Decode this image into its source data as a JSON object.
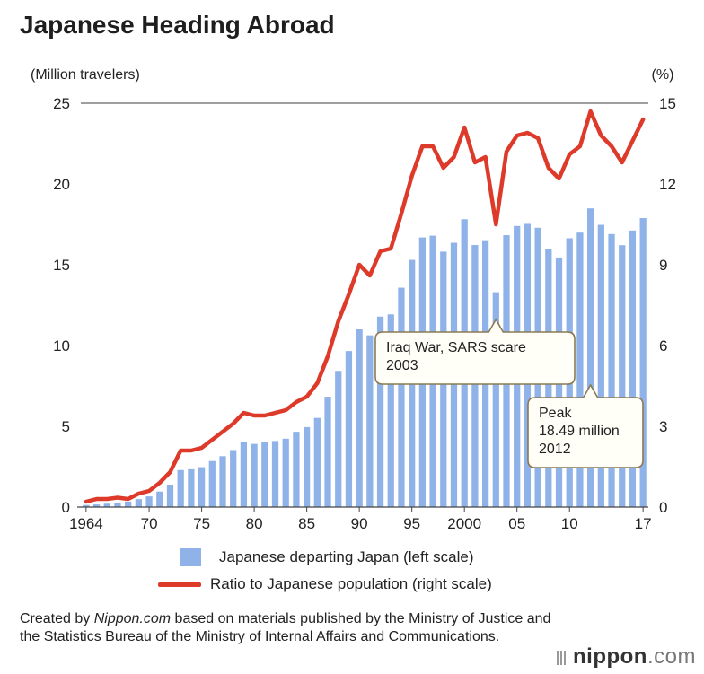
{
  "title": "Japanese Heading Abroad",
  "legend": {
    "bars": "Japanese departing Japan (left scale)",
    "line": "Ratio to Japanese population (right scale)"
  },
  "source": {
    "prefix": "Created by ",
    "site": "Nippon.com",
    "rest": " based on materials published by the Ministry of Justice and the Statistics Bureau of the Ministry of Internal Affairs and Communications."
  },
  "logo": {
    "brand": "nippon",
    "suffix": ".com"
  },
  "annotations": [
    {
      "lines": [
        "Iraq War, SARS scare",
        "2003"
      ],
      "year": 2003
    },
    {
      "lines": [
        "Peak",
        "18.49 million",
        "2012"
      ],
      "year": 2012
    }
  ],
  "chart_data": {
    "type": "bar+line",
    "title": "Japanese Heading Abroad",
    "left_axis": {
      "label": "(Million travelers)",
      "ylim": [
        0,
        25
      ],
      "ticks": [
        0,
        5,
        10,
        15,
        20,
        25
      ]
    },
    "right_axis": {
      "label": "(%)",
      "ylim": [
        0,
        15
      ],
      "ticks": [
        0,
        3,
        6,
        9,
        12,
        15
      ]
    },
    "x_tick_labels": [
      {
        "year": 1964,
        "label": "1964"
      },
      {
        "year": 1970,
        "label": "70"
      },
      {
        "year": 1975,
        "label": "75"
      },
      {
        "year": 1980,
        "label": "80"
      },
      {
        "year": 1985,
        "label": "85"
      },
      {
        "year": 1990,
        "label": "90"
      },
      {
        "year": 1995,
        "label": "95"
      },
      {
        "year": 2000,
        "label": "2000"
      },
      {
        "year": 2005,
        "label": "05"
      },
      {
        "year": 2010,
        "label": "10"
      },
      {
        "year": 2017,
        "label": "17"
      }
    ],
    "years": [
      1964,
      1965,
      1966,
      1967,
      1968,
      1969,
      1970,
      1971,
      1972,
      1973,
      1974,
      1975,
      1976,
      1977,
      1978,
      1979,
      1980,
      1981,
      1982,
      1983,
      1984,
      1985,
      1986,
      1987,
      1988,
      1989,
      1990,
      1991,
      1992,
      1993,
      1994,
      1995,
      1996,
      1997,
      1998,
      1999,
      2000,
      2001,
      2002,
      2003,
      2004,
      2005,
      2006,
      2007,
      2008,
      2009,
      2010,
      2011,
      2012,
      2013,
      2014,
      2015,
      2016,
      2017
    ],
    "series": [
      {
        "name": "Japanese departing Japan (left scale)",
        "axis": "left",
        "kind": "bar",
        "color": "#8fb3e8",
        "values": [
          0.13,
          0.16,
          0.21,
          0.27,
          0.34,
          0.49,
          0.66,
          0.96,
          1.39,
          2.29,
          2.34,
          2.47,
          2.85,
          3.15,
          3.53,
          4.04,
          3.91,
          4.01,
          4.09,
          4.23,
          4.66,
          4.95,
          5.52,
          6.83,
          8.43,
          9.66,
          11.0,
          10.63,
          11.79,
          11.93,
          13.58,
          15.3,
          16.69,
          16.8,
          15.81,
          16.36,
          17.82,
          16.22,
          16.52,
          13.3,
          16.83,
          17.4,
          17.53,
          17.29,
          15.99,
          15.45,
          16.64,
          16.99,
          18.49,
          17.47,
          16.9,
          16.21,
          17.12,
          17.89
        ]
      },
      {
        "name": "Ratio to Japanese population (right scale)",
        "axis": "right",
        "kind": "line",
        "color": "#dd3a2a",
        "values": [
          0.2,
          0.3,
          0.3,
          0.35,
          0.3,
          0.5,
          0.6,
          0.9,
          1.3,
          2.1,
          2.1,
          2.2,
          2.5,
          2.8,
          3.1,
          3.5,
          3.4,
          3.4,
          3.5,
          3.6,
          3.9,
          4.1,
          4.6,
          5.6,
          6.9,
          7.9,
          9.0,
          8.6,
          9.5,
          9.6,
          10.9,
          12.3,
          13.4,
          13.4,
          12.6,
          13.0,
          14.1,
          12.8,
          13.0,
          10.5,
          13.2,
          13.8,
          13.9,
          13.7,
          12.6,
          12.2,
          13.1,
          13.4,
          14.7,
          13.8,
          13.4,
          12.8,
          13.6,
          14.4
        ]
      }
    ],
    "grid": "top line only"
  }
}
